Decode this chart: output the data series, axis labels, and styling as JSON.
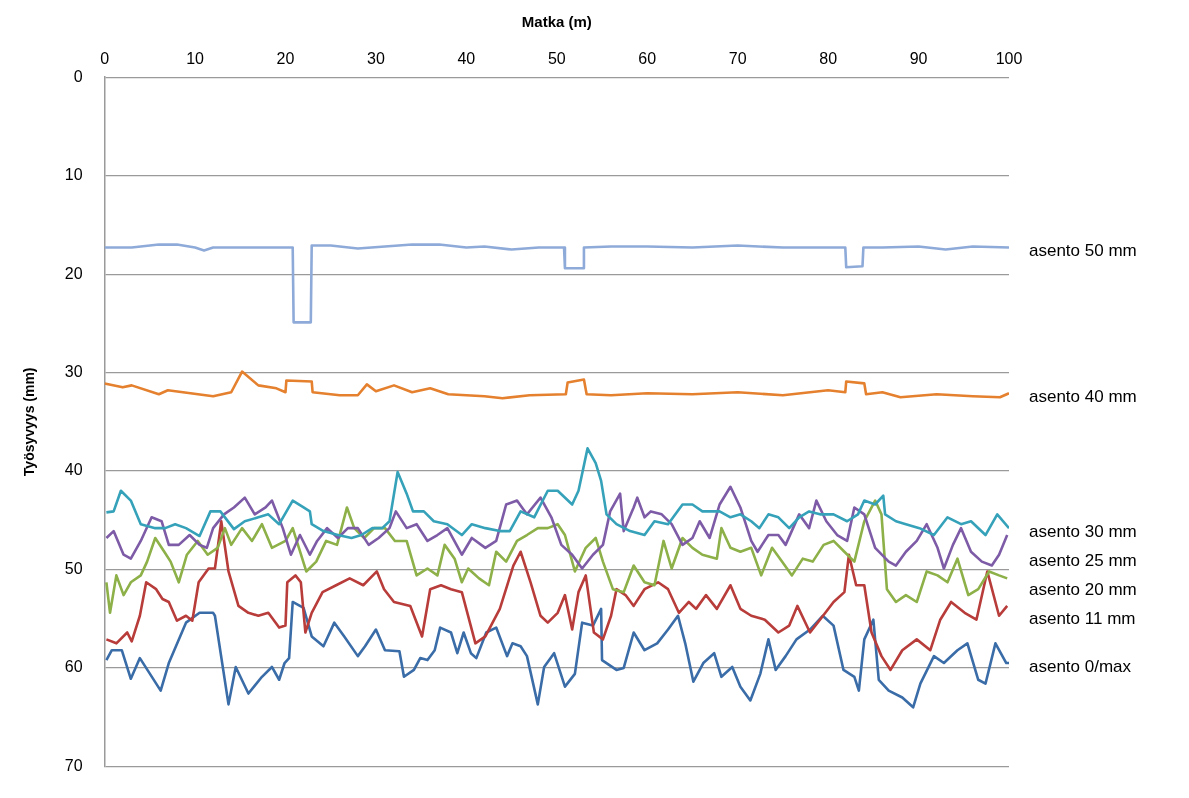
{
  "chart_data": {
    "type": "line",
    "xlabel": "Matka (m)",
    "ylabel": "Työsyvyys (mm)",
    "xlim": [
      0,
      100
    ],
    "xticks": [
      0,
      10,
      20,
      30,
      40,
      50,
      60,
      70,
      80,
      90,
      100
    ],
    "ylim": [
      70,
      0
    ],
    "yticks": [
      0,
      10,
      20,
      30,
      40,
      50,
      60,
      70
    ],
    "grid": "y",
    "legend": false,
    "marker": "none",
    "series": [
      {
        "name": "asento 50 mm",
        "color": "#8eaad8",
        "x": [
          0,
          3,
          6,
          8,
          10,
          11,
          12,
          15,
          20.8,
          20.9,
          22.8,
          22.9,
          25,
          28,
          31,
          34,
          37,
          40,
          42,
          45,
          48,
          50.8,
          50.9,
          52.9,
          53,
          56,
          60,
          65,
          70,
          75,
          80,
          81.9,
          82,
          83.8,
          83.9,
          86,
          90,
          93,
          96,
          100
        ],
        "values": [
          17.3,
          17.3,
          17.0,
          17.0,
          17.3,
          17.6,
          17.3,
          17.3,
          17.3,
          24.9,
          24.9,
          17.1,
          17.1,
          17.4,
          17.2,
          17.0,
          17.0,
          17.3,
          17.2,
          17.5,
          17.3,
          17.3,
          19.4,
          19.4,
          17.3,
          17.2,
          17.2,
          17.3,
          17.1,
          17.3,
          17.3,
          17.3,
          19.3,
          19.2,
          17.3,
          17.3,
          17.2,
          17.5,
          17.2,
          17.3
        ]
      },
      {
        "name": "asento 40 mm",
        "color": "#e4802e",
        "x": [
          0,
          2,
          3,
          6,
          7,
          12,
          13,
          14,
          15.2,
          17,
          19,
          20,
          20.1,
          22.9,
          23,
          26,
          28,
          29,
          30,
          32,
          34,
          36,
          38,
          42,
          44,
          47,
          51,
          51.2,
          53,
          53.3,
          56,
          60,
          65,
          70,
          75,
          80,
          81.9,
          82,
          84,
          84.2,
          86,
          88,
          92,
          96,
          99,
          100
        ],
        "values": [
          31.1,
          31.5,
          31.3,
          32.2,
          31.8,
          32.4,
          32.2,
          32.0,
          29.9,
          31.3,
          31.6,
          32.0,
          30.8,
          30.9,
          32.0,
          32.3,
          32.3,
          31.2,
          31.9,
          31.3,
          32.0,
          31.6,
          32.2,
          32.4,
          32.6,
          32.3,
          32.2,
          31.0,
          30.7,
          32.2,
          32.3,
          32.1,
          32.2,
          32.0,
          32.3,
          31.8,
          32.0,
          30.9,
          31.1,
          32.2,
          32.0,
          32.5,
          32.2,
          32.4,
          32.5,
          32.1
        ]
      },
      {
        "name": "asento 30 mm",
        "color": "#35a2ba",
        "x": [
          0.2,
          1,
          1.8,
          2.9,
          4,
          5.6,
          6.7,
          7.8,
          9,
          10.5,
          11.7,
          12.8,
          14.3,
          15.5,
          17,
          18.1,
          19.3,
          20.8,
          22,
          22.7,
          22.9,
          24.2,
          25.8,
          27.3,
          28.4,
          29.6,
          30.7,
          31.5,
          32.4,
          33.4,
          34.1,
          35.3,
          36.4,
          37.9,
          39.5,
          40.6,
          42.1,
          43.7,
          44.8,
          46,
          47.5,
          49,
          50.1,
          51.7,
          52.4,
          53.4,
          54.3,
          54.9,
          55.5,
          56.6,
          58.1,
          59.7,
          60.8,
          62.3,
          63.9,
          65,
          66.1,
          66.9,
          68,
          69.2,
          70.3,
          71.5,
          72.4,
          73.4,
          74.5,
          75.7,
          76.8,
          77.9,
          79.1,
          80.6,
          82.1,
          83.3,
          84,
          85.2,
          86.1,
          86.3,
          87.5,
          88.6,
          90.1,
          91.7,
          93.2,
          94.7,
          95.8,
          97.4,
          98.7,
          100
        ],
        "values": [
          44.2,
          44.1,
          42.0,
          43.0,
          45.4,
          45.8,
          45.8,
          45.4,
          45.8,
          46.6,
          44.1,
          44.1,
          45.9,
          45.1,
          44.7,
          44.4,
          45.4,
          43.0,
          43.7,
          44.1,
          45.4,
          46.1,
          46.5,
          46.8,
          46.5,
          45.8,
          45.8,
          45.1,
          40.1,
          42.3,
          44.1,
          44.1,
          45.1,
          45.4,
          46.5,
          45.4,
          45.8,
          46.1,
          46.1,
          44.1,
          44.7,
          42.0,
          42.0,
          43.4,
          42.0,
          37.7,
          39.2,
          41.0,
          44.4,
          45.4,
          46.1,
          46.5,
          45.1,
          45.4,
          43.4,
          43.4,
          44.1,
          44.1,
          44.1,
          44.7,
          44.4,
          45.1,
          45.8,
          44.4,
          44.7,
          45.8,
          44.7,
          44.1,
          44.4,
          44.4,
          45.1,
          44.4,
          43.0,
          43.4,
          42.5,
          44.4,
          45.1,
          45.4,
          45.8,
          46.5,
          44.7,
          45.4,
          45.1,
          46.5,
          44.4,
          45.8
        ]
      },
      {
        "name": "asento 25 mm",
        "color": "#7d5ba6",
        "x": [
          0.2,
          1,
          2.1,
          2.9,
          4,
          5.2,
          6.3,
          7.1,
          8.2,
          9.4,
          10.5,
          11.3,
          12,
          13.2,
          14.3,
          15.5,
          16.6,
          17.8,
          18.5,
          19.7,
          20.6,
          21.6,
          22.7,
          23.5,
          24.6,
          25.8,
          26.9,
          28,
          29.2,
          30.3,
          31.5,
          32.2,
          33.4,
          34.5,
          35.7,
          36.8,
          37.9,
          39.5,
          40.6,
          42.1,
          43.3,
          44.4,
          45.6,
          46.7,
          48.2,
          49.4,
          50.5,
          51.7,
          52.8,
          54,
          55.1,
          55.9,
          57,
          57.4,
          58.5,
          58.9,
          59.7,
          60.4,
          61.6,
          62.7,
          63.9,
          65,
          65.8,
          66.9,
          68,
          69.2,
          70.3,
          71.5,
          72.2,
          73.4,
          74.5,
          75.3,
          76.8,
          77.9,
          78.7,
          79.8,
          81,
          82.1,
          82.9,
          84,
          85.2,
          86.7,
          87.5,
          88.6,
          89.8,
          90.9,
          92.1,
          92.8,
          93.8,
          94.7,
          95.8,
          97,
          98.1,
          98.9,
          99.8
        ],
        "values": [
          46.8,
          46.1,
          48.5,
          48.9,
          47.1,
          44.7,
          45.1,
          47.5,
          47.5,
          46.5,
          47.5,
          47.8,
          45.8,
          44.4,
          43.7,
          42.7,
          44.4,
          43.7,
          43.0,
          45.8,
          48.5,
          46.5,
          48.5,
          47.1,
          45.8,
          46.8,
          45.8,
          45.8,
          47.5,
          46.8,
          45.8,
          44.1,
          45.8,
          45.4,
          47.1,
          46.5,
          45.8,
          48.5,
          46.8,
          47.8,
          47.1,
          43.4,
          43.0,
          44.4,
          42.7,
          44.7,
          47.5,
          48.5,
          49.9,
          48.5,
          47.5,
          44.1,
          42.3,
          46.1,
          43.7,
          42.7,
          44.7,
          44.1,
          44.4,
          45.4,
          47.5,
          46.8,
          45.1,
          46.8,
          43.4,
          41.6,
          43.7,
          47.1,
          48.2,
          46.5,
          46.5,
          47.5,
          44.4,
          45.8,
          43.0,
          45.1,
          46.5,
          47.1,
          43.7,
          44.4,
          47.8,
          49.2,
          49.6,
          48.2,
          47.1,
          45.4,
          47.8,
          49.9,
          47.5,
          45.8,
          48.2,
          49.2,
          49.6,
          48.5,
          46.5
        ]
      },
      {
        "name": "asento 20 mm",
        "color": "#8db048",
        "x": [
          0.2,
          0.6,
          1.3,
          2.1,
          2.9,
          4,
          4.7,
          5.6,
          6.6,
          7.3,
          8.2,
          9.1,
          10.3,
          11.4,
          12.5,
          13.3,
          14,
          15.2,
          16.3,
          17.4,
          18.5,
          20,
          20.8,
          22.3,
          23.4,
          24.5,
          25.7,
          26.8,
          27.6,
          28.7,
          29.8,
          31,
          32.1,
          33.4,
          34.5,
          35.7,
          36.8,
          37.6,
          38.7,
          39.5,
          40.2,
          41.4,
          42.5,
          43.3,
          44.4,
          45.6,
          46.7,
          47.9,
          49,
          50.1,
          50.9,
          52,
          53.2,
          54.3,
          55.1,
          56.2,
          57.4,
          58.5,
          59.7,
          60.8,
          61.8,
          62.7,
          63.9,
          65,
          66.1,
          67.7,
          68.2,
          69.2,
          70.3,
          71.5,
          72.6,
          73.8,
          74.9,
          76,
          77.2,
          78.3,
          79.5,
          80.6,
          81.8,
          82.9,
          84,
          85.2,
          85.9,
          86.5,
          87.5,
          88.6,
          89.8,
          90.9,
          92.1,
          93.2,
          94.3,
          95.5,
          96.6,
          97.8,
          98.9,
          99.8
        ],
        "values": [
          51.3,
          54.4,
          50.6,
          52.6,
          51.3,
          50.6,
          49.2,
          46.8,
          48.2,
          49.2,
          51.3,
          48.5,
          47.1,
          48.5,
          47.8,
          45.8,
          47.5,
          45.8,
          47.1,
          45.4,
          47.8,
          47.1,
          45.8,
          50.2,
          49.2,
          47.1,
          47.5,
          43.7,
          45.8,
          46.8,
          45.8,
          45.8,
          47.1,
          47.1,
          50.6,
          49.9,
          50.6,
          47.5,
          48.9,
          51.3,
          49.9,
          50.9,
          51.6,
          48.2,
          49.2,
          47.1,
          46.5,
          45.8,
          45.8,
          45.4,
          46.5,
          50.2,
          47.8,
          46.8,
          49.2,
          52.0,
          52.3,
          49.6,
          51.3,
          51.6,
          47.1,
          49.9,
          46.8,
          47.8,
          48.5,
          48.9,
          45.8,
          47.8,
          48.2,
          47.8,
          50.6,
          47.8,
          49.2,
          50.6,
          48.9,
          49.2,
          47.5,
          47.1,
          48.2,
          49.2,
          45.1,
          43.0,
          44.4,
          52.0,
          53.3,
          52.6,
          53.3,
          50.2,
          50.6,
          51.3,
          48.9,
          52.6,
          52.0,
          50.2,
          50.6,
          50.9
        ]
      },
      {
        "name": "asento 11 mm",
        "color": "#b83c3a",
        "x": [
          0.2,
          1.3,
          2.5,
          3.0,
          3.9,
          4.6,
          5.7,
          6.4,
          7.1,
          8,
          9,
          9.7,
          10.4,
          11.5,
          12.2,
          12.9,
          13.7,
          14.8,
          15.9,
          17,
          18.1,
          19.3,
          20,
          20.2,
          21.1,
          21.7,
          22.2,
          22.9,
          24.1,
          25.6,
          27.1,
          28.6,
          30.1,
          30.9,
          32,
          33.8,
          35.1,
          36,
          37.2,
          38.3,
          39.5,
          41,
          42.1,
          43.7,
          45.2,
          46,
          47.1,
          48.2,
          49,
          50.1,
          50.9,
          51.7,
          52.4,
          53.2,
          54.1,
          55.1,
          56,
          56.6,
          57.6,
          58.5,
          59.7,
          61.2,
          62.3,
          63.5,
          64.6,
          65.4,
          66.5,
          67.7,
          69.2,
          70.3,
          71.5,
          73,
          74.5,
          75.7,
          76.6,
          78,
          79.1,
          80.6,
          81.8,
          82.3,
          83.1,
          84,
          84.8,
          85.9,
          86.9,
          88.2,
          89.8,
          91.3,
          92.4,
          93.6,
          95.1,
          96.4,
          97.6,
          98.9,
          99.8
        ],
        "values": [
          57.1,
          57.5,
          56.4,
          57.3,
          54.7,
          51.3,
          52.0,
          53.0,
          53.3,
          55.2,
          54.7,
          55.2,
          51.3,
          49.9,
          49.9,
          45.1,
          50.2,
          53.7,
          54.4,
          54.7,
          54.4,
          55.9,
          55.7,
          51.3,
          50.6,
          51.3,
          56.4,
          54.4,
          52.3,
          51.6,
          50.9,
          51.6,
          50.2,
          52.0,
          53.3,
          53.7,
          56.8,
          52.0,
          51.6,
          52.0,
          52.3,
          57.5,
          56.8,
          54.0,
          49.6,
          48.2,
          51.3,
          54.7,
          55.4,
          54.4,
          52.6,
          56.1,
          52.3,
          50.6,
          56.4,
          57.1,
          54.7,
          52.0,
          52.6,
          53.7,
          52.0,
          51.3,
          52.0,
          54.4,
          53.3,
          54.0,
          52.6,
          54.0,
          51.6,
          54.0,
          54.7,
          55.1,
          56.4,
          55.7,
          53.7,
          56.4,
          55.1,
          53.3,
          52.3,
          48.5,
          51.6,
          51.6,
          56.4,
          58.8,
          60.2,
          58.2,
          57.1,
          58.2,
          55.1,
          53.3,
          54.4,
          55.1,
          50.2,
          54.7,
          53.7
        ]
      },
      {
        "name": "asento 0/max",
        "color": "#3a6ca8",
        "x": [
          0.2,
          0.8,
          1.9,
          2.9,
          3.9,
          6.2,
          7.1,
          9,
          10.5,
          12,
          12.2,
          13.7,
          14.5,
          15.9,
          17.4,
          18.5,
          19.3,
          19.9,
          20.4,
          20.8,
          22,
          22.9,
          24.2,
          25.4,
          26.5,
          28,
          28.8,
          30,
          31,
          32.6,
          33.1,
          34.2,
          34.9,
          35.7,
          36.5,
          37.1,
          38.3,
          39,
          39.7,
          40.5,
          41.1,
          42.2,
          43.3,
          44.5,
          45.1,
          46,
          46.7,
          47.9,
          48.6,
          49.7,
          50.9,
          52,
          52.8,
          54,
          54.9,
          55,
          56.6,
          57.4,
          58.5,
          59.7,
          61.1,
          62.3,
          63.4,
          64.2,
          65.1,
          66.2,
          67.4,
          68.2,
          69.4,
          70.3,
          71.4,
          72.5,
          73.4,
          74.2,
          75.3,
          76.5,
          78,
          79.4,
          80.6,
          81.7,
          82.9,
          83.4,
          84,
          85,
          85.6,
          86.7,
          88.2,
          89.4,
          90.2,
          91.7,
          92.8,
          94.3,
          95.4,
          96.6,
          97.4,
          98.5,
          99.7,
          100
        ],
        "values": [
          59.2,
          58.2,
          58.2,
          61.1,
          59.0,
          62.3,
          59.5,
          55.4,
          54.4,
          54.4,
          54.7,
          63.7,
          59.9,
          62.6,
          60.9,
          59.9,
          61.2,
          59.5,
          59.0,
          53.3,
          53.9,
          56.8,
          57.8,
          55.4,
          56.8,
          58.8,
          57.8,
          56.1,
          58.2,
          58.3,
          60.9,
          60.2,
          59.0,
          59.2,
          58.2,
          55.9,
          56.4,
          58.5,
          56.4,
          58.5,
          59.0,
          56.4,
          55.9,
          58.8,
          57.5,
          57.8,
          58.8,
          63.7,
          59.9,
          58.5,
          61.9,
          60.6,
          55.4,
          55.7,
          54.0,
          59.2,
          60.2,
          60.0,
          56.4,
          58.2,
          57.5,
          56.1,
          54.7,
          57.5,
          61.4,
          59.5,
          58.5,
          60.9,
          59.9,
          61.9,
          63.3,
          60.6,
          57.1,
          60.2,
          58.8,
          57.1,
          56.1,
          54.7,
          55.7,
          60.2,
          60.9,
          62.3,
          57.1,
          55.1,
          61.2,
          62.3,
          63.0,
          64.0,
          61.6,
          58.8,
          59.5,
          58.2,
          57.5,
          61.2,
          61.6,
          57.5,
          59.5,
          59.5
        ]
      }
    ]
  }
}
